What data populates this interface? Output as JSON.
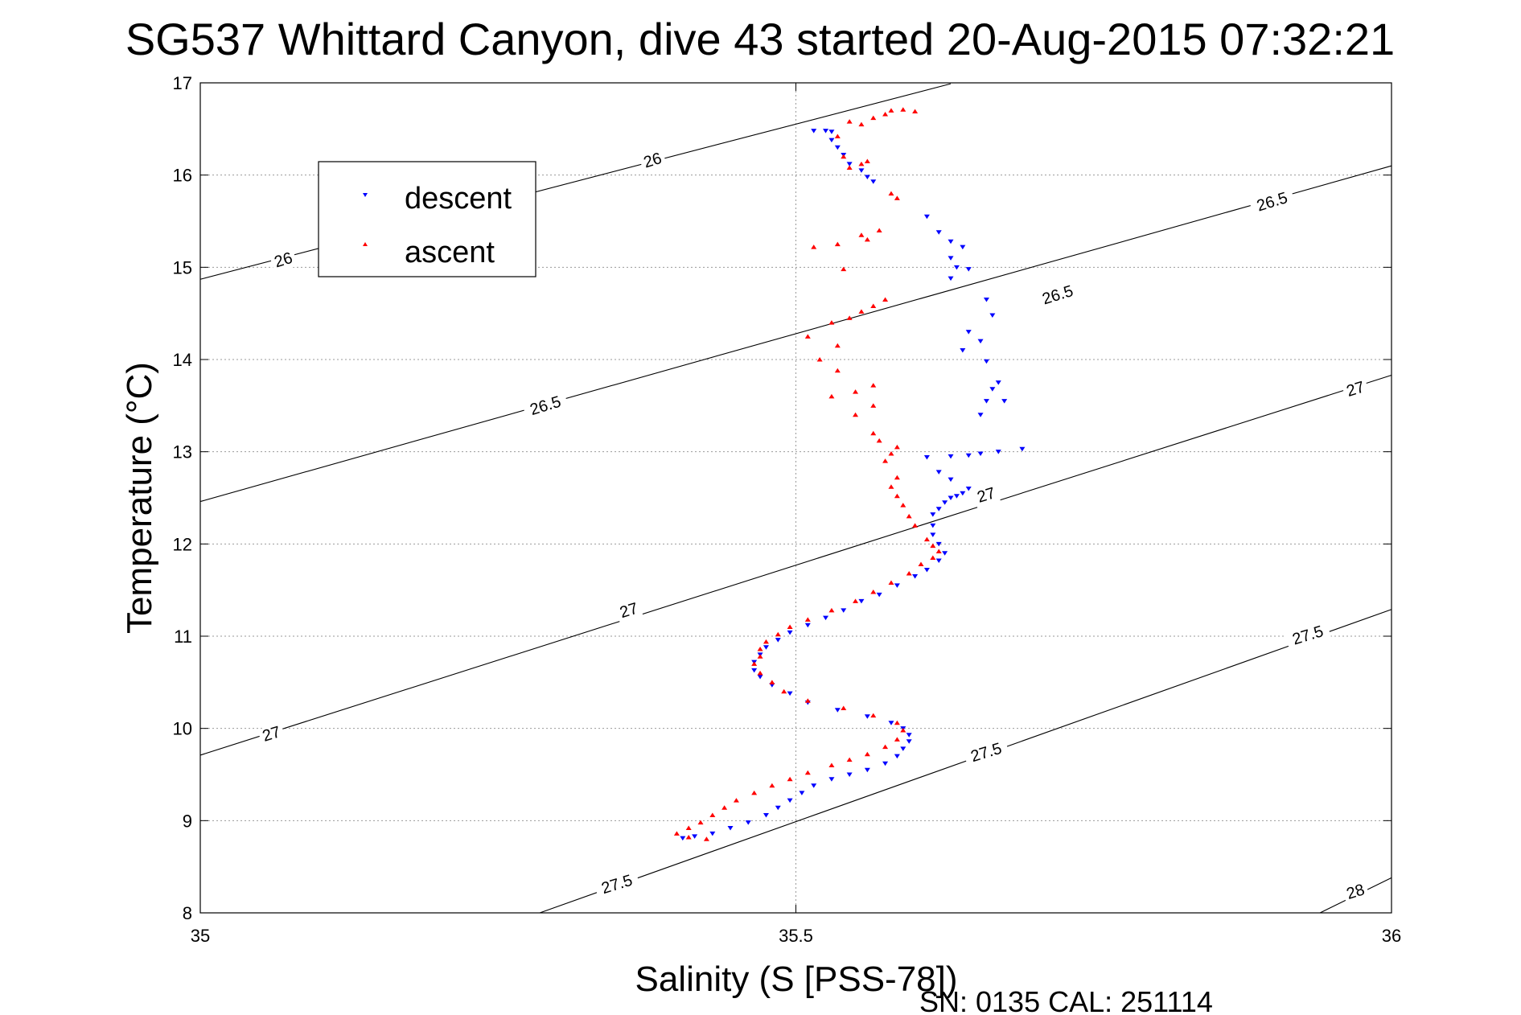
{
  "chart_data": {
    "type": "scatter",
    "title": "SG537 Whittard Canyon, dive 43 started 20-Aug-2015 07:32:21",
    "xlabel": "Salinity (S [PSS-78])",
    "ylabel": "Temperature (°C)",
    "xlim": [
      35,
      36
    ],
    "ylim": [
      8,
      17
    ],
    "xticks": [
      35,
      35.5,
      36
    ],
    "xtick_labels": [
      "35",
      "35.5",
      "36"
    ],
    "yticks": [
      8,
      9,
      10,
      11,
      12,
      13,
      14,
      15,
      16,
      17
    ],
    "ytick_labels": [
      "8",
      "9",
      "10",
      "11",
      "12",
      "13",
      "14",
      "15",
      "16",
      "17"
    ],
    "grid": true,
    "legend_position": "top-left",
    "isopycnals": [
      {
        "label": "26",
        "points": [
          [
            35.0,
            14.87
          ],
          [
            35.63,
            16.99
          ]
        ]
      },
      {
        "label": "26.5",
        "points": [
          [
            35.0,
            12.46
          ],
          [
            36.0,
            16.1
          ]
        ]
      },
      {
        "label": "27",
        "points": [
          [
            35.0,
            9.71
          ],
          [
            36.0,
            13.83
          ]
        ]
      },
      {
        "label": "27.5",
        "points": [
          [
            35.285,
            8.0
          ],
          [
            36.0,
            11.29
          ]
        ]
      },
      {
        "label": "28",
        "points": [
          [
            35.94,
            8.0
          ],
          [
            36.0,
            8.38
          ]
        ]
      }
    ],
    "isopycnal_labels": [
      {
        "text": "26",
        "x": 35.38,
        "y": 16.15
      },
      {
        "text": "26",
        "x": 35.07,
        "y": 15.07
      },
      {
        "text": "26.5",
        "x": 35.72,
        "y": 14.69
      },
      {
        "text": "26.5",
        "x": 35.9,
        "y": 15.7
      },
      {
        "text": "26.5",
        "x": 35.29,
        "y": 13.49
      },
      {
        "text": "27",
        "x": 35.66,
        "y": 12.52
      },
      {
        "text": "27",
        "x": 35.97,
        "y": 13.67
      },
      {
        "text": "27",
        "x": 35.36,
        "y": 11.27
      },
      {
        "text": "27",
        "x": 35.06,
        "y": 9.93
      },
      {
        "text": "27.5",
        "x": 35.66,
        "y": 9.73
      },
      {
        "text": "27.5",
        "x": 35.35,
        "y": 8.3
      },
      {
        "text": "27.5",
        "x": 35.93,
        "y": 11.0
      },
      {
        "text": "28",
        "x": 35.97,
        "y": 8.22
      }
    ],
    "series": [
      {
        "name": "descent",
        "color": "#0000ff",
        "marker": "triangle-down",
        "points": [
          [
            35.515,
            16.48
          ],
          [
            35.525,
            16.48
          ],
          [
            35.53,
            16.47
          ],
          [
            35.53,
            16.38
          ],
          [
            35.535,
            16.3
          ],
          [
            35.54,
            16.22
          ],
          [
            35.545,
            16.12
          ],
          [
            35.555,
            16.05
          ],
          [
            35.56,
            15.98
          ],
          [
            35.565,
            15.93
          ],
          [
            35.61,
            15.55
          ],
          [
            35.62,
            15.38
          ],
          [
            35.63,
            15.28
          ],
          [
            35.64,
            15.22
          ],
          [
            35.63,
            15.1
          ],
          [
            35.635,
            15.0
          ],
          [
            35.645,
            14.98
          ],
          [
            35.63,
            14.88
          ],
          [
            35.66,
            14.65
          ],
          [
            35.665,
            14.48
          ],
          [
            35.645,
            14.3
          ],
          [
            35.655,
            14.2
          ],
          [
            35.64,
            14.1
          ],
          [
            35.66,
            13.98
          ],
          [
            35.67,
            13.75
          ],
          [
            35.665,
            13.68
          ],
          [
            35.66,
            13.55
          ],
          [
            35.655,
            13.4
          ],
          [
            35.675,
            13.55
          ],
          [
            35.69,
            13.03
          ],
          [
            35.67,
            13.0
          ],
          [
            35.655,
            12.98
          ],
          [
            35.645,
            12.96
          ],
          [
            35.63,
            12.95
          ],
          [
            35.61,
            12.94
          ],
          [
            35.62,
            12.78
          ],
          [
            35.63,
            12.7
          ],
          [
            35.645,
            12.6
          ],
          [
            35.64,
            12.55
          ],
          [
            35.635,
            12.52
          ],
          [
            35.63,
            12.5
          ],
          [
            35.625,
            12.45
          ],
          [
            35.62,
            12.38
          ],
          [
            35.615,
            12.32
          ],
          [
            35.615,
            12.2
          ],
          [
            35.615,
            12.1
          ],
          [
            35.62,
            12.0
          ],
          [
            35.625,
            11.9
          ],
          [
            35.62,
            11.82
          ],
          [
            35.61,
            11.72
          ],
          [
            35.6,
            11.65
          ],
          [
            35.585,
            11.55
          ],
          [
            35.57,
            11.45
          ],
          [
            35.555,
            11.38
          ],
          [
            35.54,
            11.28
          ],
          [
            35.525,
            11.2
          ],
          [
            35.51,
            11.12
          ],
          [
            35.495,
            11.04
          ],
          [
            35.485,
            10.96
          ],
          [
            35.475,
            10.88
          ],
          [
            35.47,
            10.8
          ],
          [
            35.465,
            10.72
          ],
          [
            35.465,
            10.63
          ],
          [
            35.47,
            10.56
          ],
          [
            35.48,
            10.47
          ],
          [
            35.495,
            10.38
          ],
          [
            35.51,
            10.28
          ],
          [
            35.535,
            10.2
          ],
          [
            35.56,
            10.13
          ],
          [
            35.58,
            10.06
          ],
          [
            35.59,
            10.0
          ],
          [
            35.595,
            9.93
          ],
          [
            35.595,
            9.86
          ],
          [
            35.59,
            9.78
          ],
          [
            35.585,
            9.7
          ],
          [
            35.575,
            9.62
          ],
          [
            35.56,
            9.55
          ],
          [
            35.545,
            9.5
          ],
          [
            35.53,
            9.45
          ],
          [
            35.515,
            9.38
          ],
          [
            35.505,
            9.3
          ],
          [
            35.495,
            9.22
          ],
          [
            35.485,
            9.14
          ],
          [
            35.475,
            9.06
          ],
          [
            35.46,
            8.98
          ],
          [
            35.445,
            8.92
          ],
          [
            35.43,
            8.86
          ],
          [
            35.415,
            8.83
          ],
          [
            35.405,
            8.81
          ]
        ]
      },
      {
        "name": "ascent",
        "color": "#ff0000",
        "marker": "triangle-up",
        "points": [
          [
            35.58,
            16.7
          ],
          [
            35.59,
            16.71
          ],
          [
            35.6,
            16.69
          ],
          [
            35.575,
            16.66
          ],
          [
            35.565,
            16.62
          ],
          [
            35.545,
            16.58
          ],
          [
            35.555,
            16.55
          ],
          [
            35.535,
            16.42
          ],
          [
            35.54,
            16.2
          ],
          [
            35.555,
            16.12
          ],
          [
            35.56,
            16.15
          ],
          [
            35.545,
            16.08
          ],
          [
            35.58,
            15.8
          ],
          [
            35.585,
            15.75
          ],
          [
            35.57,
            15.4
          ],
          [
            35.555,
            15.35
          ],
          [
            35.56,
            15.3
          ],
          [
            35.535,
            15.25
          ],
          [
            35.515,
            15.22
          ],
          [
            35.54,
            14.98
          ],
          [
            35.575,
            14.65
          ],
          [
            35.565,
            14.58
          ],
          [
            35.555,
            14.52
          ],
          [
            35.545,
            14.45
          ],
          [
            35.53,
            14.4
          ],
          [
            35.51,
            14.25
          ],
          [
            35.535,
            14.15
          ],
          [
            35.52,
            14.0
          ],
          [
            35.535,
            13.88
          ],
          [
            35.565,
            13.72
          ],
          [
            35.55,
            13.65
          ],
          [
            35.53,
            13.6
          ],
          [
            35.565,
            13.5
          ],
          [
            35.55,
            13.4
          ],
          [
            35.565,
            13.2
          ],
          [
            35.57,
            13.12
          ],
          [
            35.585,
            13.05
          ],
          [
            35.58,
            12.98
          ],
          [
            35.575,
            12.9
          ],
          [
            35.585,
            12.72
          ],
          [
            35.58,
            12.62
          ],
          [
            35.585,
            12.52
          ],
          [
            35.59,
            12.42
          ],
          [
            35.595,
            12.3
          ],
          [
            35.6,
            12.2
          ],
          [
            35.61,
            12.05
          ],
          [
            35.615,
            11.98
          ],
          [
            35.62,
            11.92
          ],
          [
            35.615,
            11.85
          ],
          [
            35.605,
            11.78
          ],
          [
            35.595,
            11.68
          ],
          [
            35.58,
            11.58
          ],
          [
            35.565,
            11.48
          ],
          [
            35.55,
            11.38
          ],
          [
            35.53,
            11.28
          ],
          [
            35.51,
            11.18
          ],
          [
            35.495,
            11.1
          ],
          [
            35.485,
            11.02
          ],
          [
            35.475,
            10.94
          ],
          [
            35.47,
            10.86
          ],
          [
            35.47,
            10.78
          ],
          [
            35.465,
            10.7
          ],
          [
            35.47,
            10.6
          ],
          [
            35.48,
            10.5
          ],
          [
            35.49,
            10.4
          ],
          [
            35.51,
            10.3
          ],
          [
            35.54,
            10.22
          ],
          [
            35.565,
            10.14
          ],
          [
            35.585,
            10.06
          ],
          [
            35.59,
            9.98
          ],
          [
            35.585,
            9.88
          ],
          [
            35.575,
            9.8
          ],
          [
            35.56,
            9.72
          ],
          [
            35.545,
            9.66
          ],
          [
            35.53,
            9.6
          ],
          [
            35.51,
            9.52
          ],
          [
            35.495,
            9.45
          ],
          [
            35.48,
            9.38
          ],
          [
            35.465,
            9.3
          ],
          [
            35.45,
            9.22
          ],
          [
            35.44,
            9.14
          ],
          [
            35.43,
            9.06
          ],
          [
            35.42,
            8.98
          ],
          [
            35.41,
            8.92
          ],
          [
            35.4,
            8.86
          ],
          [
            35.41,
            8.82
          ],
          [
            35.425,
            8.8
          ]
        ]
      }
    ],
    "annotations": [
      "SN: 0135  CAL: 251114"
    ]
  }
}
